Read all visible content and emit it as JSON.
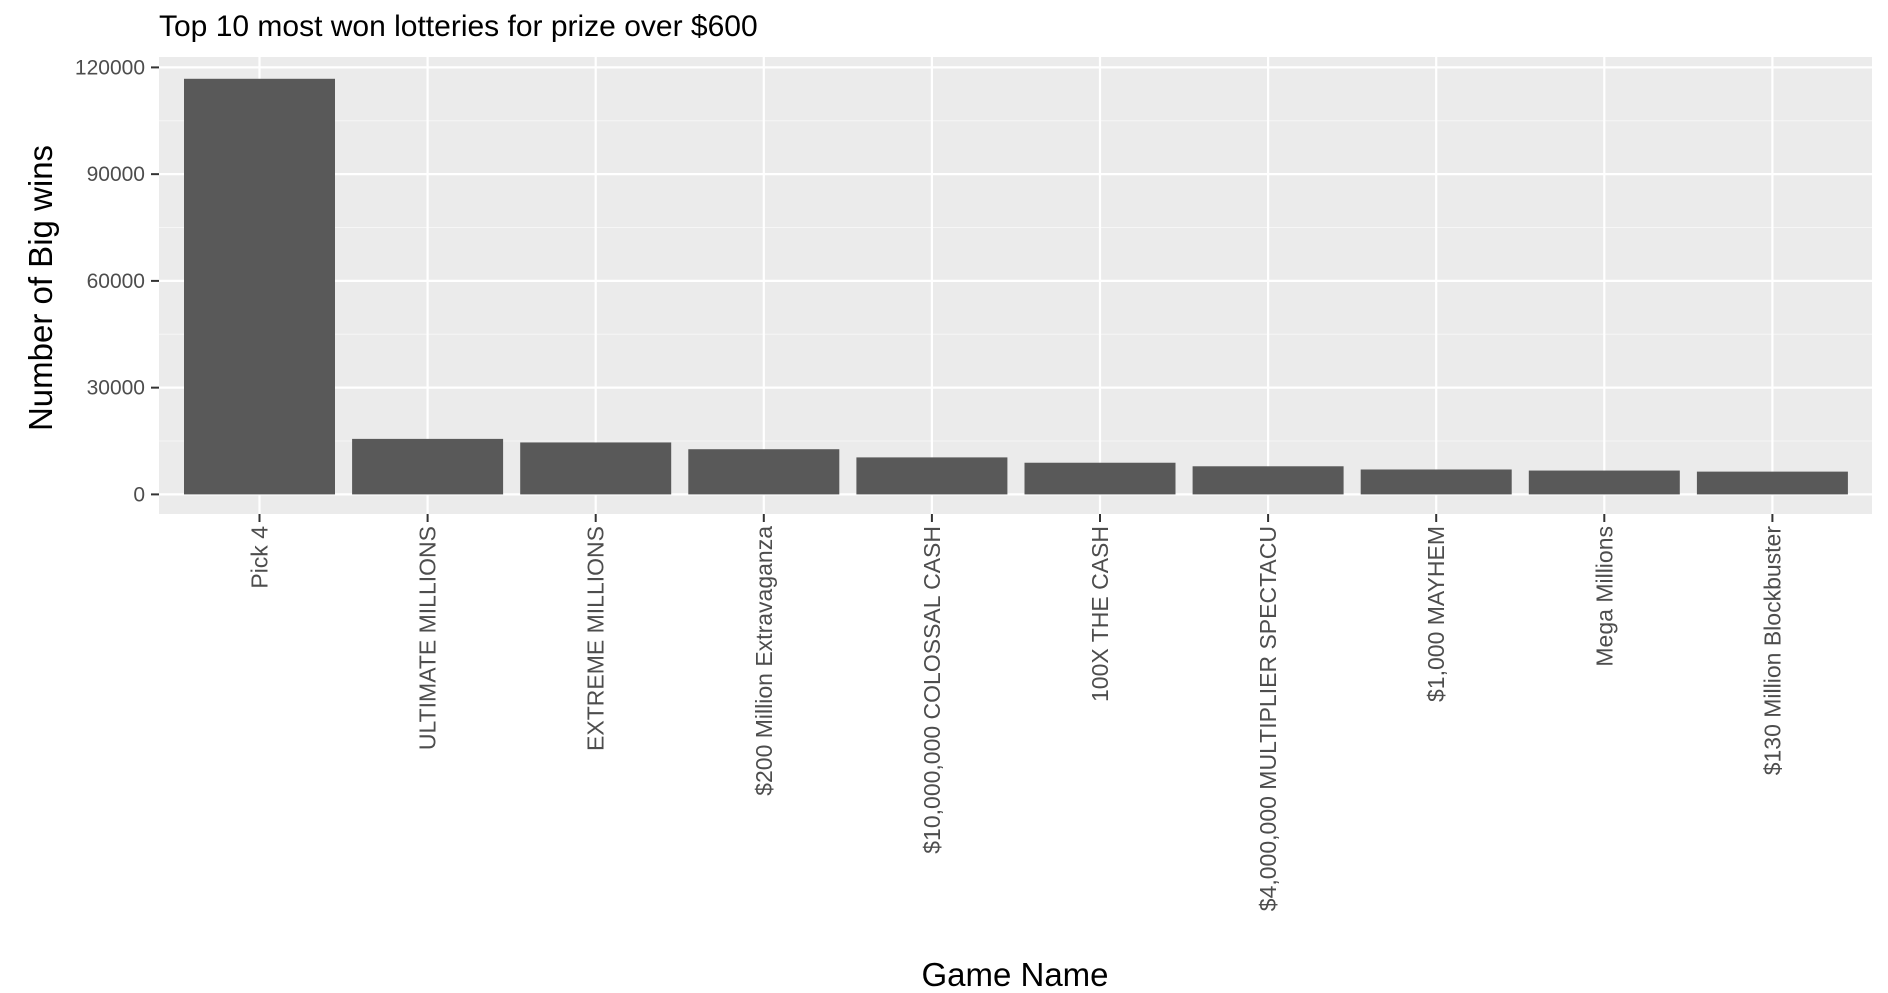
{
  "chart_data": {
    "type": "bar",
    "title": "Top 10 most won lotteries for prize over $600",
    "xlabel": "Game Name",
    "ylabel": "Number of Big wins",
    "categories": [
      "Pick 4",
      "ULTIMATE MILLIONS",
      "EXTREME MILLIONS",
      "$200 Million Extravaganza",
      "$10,000,000 COLOSSAL CASH",
      "100X THE CASH",
      "$4,000,000 MULTIPLIER SPECTACU",
      "$1,000 MAYHEM",
      "Mega Millions",
      "$130 Million Blockbuster"
    ],
    "values": [
      116800,
      15600,
      14600,
      12700,
      10400,
      8900,
      7900,
      7000,
      6700,
      6400
    ],
    "ylim": [
      0,
      120000
    ],
    "yticks": [
      0,
      30000,
      60000,
      90000,
      120000
    ],
    "grid": true,
    "legend": "none",
    "colors": {
      "bar": "#595959",
      "panel": "#ebebeb",
      "grid_major": "#ffffff",
      "grid_minor": "#f5f5f5",
      "tick_text": "#4d4d4d",
      "tick_mark": "#333333",
      "title_text": "#000000"
    }
  }
}
